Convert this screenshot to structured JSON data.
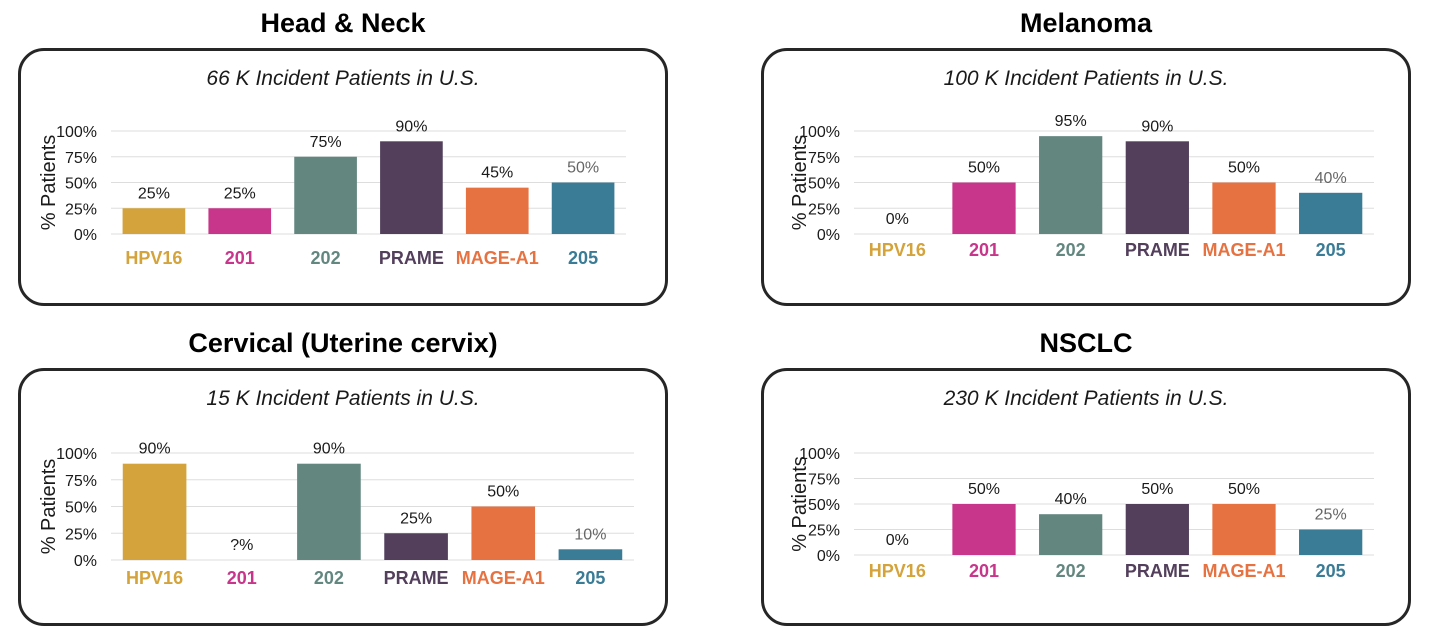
{
  "chart_data": [
    {
      "type": "bar",
      "title": "Head & Neck",
      "subtitle": "66 K Incident Patients in U.S.",
      "ylabel": "% Patients",
      "ylim": [
        0,
        100
      ],
      "yticks": [
        "0%",
        "25%",
        "50%",
        "75%",
        "100%"
      ],
      "grid": true,
      "categories": [
        "HPV16",
        "201",
        "202",
        "PRAME",
        "MAGE-A1",
        "205"
      ],
      "values": [
        25,
        25,
        75,
        90,
        45,
        50
      ],
      "labels": [
        "25%",
        "25%",
        "75%",
        "90%",
        "45%",
        "50%"
      ]
    },
    {
      "type": "bar",
      "title": "Melanoma",
      "subtitle": "100 K Incident Patients in U.S.",
      "ylabel": "% Patients",
      "ylim": [
        0,
        100
      ],
      "yticks": [
        "0%",
        "25%",
        "50%",
        "75%",
        "100%"
      ],
      "grid": true,
      "categories": [
        "HPV16",
        "201",
        "202",
        "PRAME",
        "MAGE-A1",
        "205"
      ],
      "values": [
        0,
        50,
        95,
        90,
        50,
        40
      ],
      "labels": [
        "0%",
        "50%",
        "95%",
        "90%",
        "50%",
        "40%"
      ]
    },
    {
      "type": "bar",
      "title": "Cervical (Uterine cervix)",
      "subtitle": "15 K Incident Patients in U.S.",
      "ylabel": "% Patients",
      "ylim": [
        0,
        100
      ],
      "yticks": [
        "0%",
        "25%",
        "50%",
        "75%",
        "100%"
      ],
      "grid": true,
      "categories": [
        "HPV16",
        "201",
        "202",
        "PRAME",
        "MAGE-A1",
        "205"
      ],
      "values": [
        90,
        0,
        90,
        25,
        50,
        10
      ],
      "labels": [
        "90%",
        "?%",
        "90%",
        "25%",
        "50%",
        "10%"
      ]
    },
    {
      "type": "bar",
      "title": "NSCLC",
      "subtitle": "230 K Incident Patients in U.S.",
      "ylabel": "% Patients",
      "ylim": [
        0,
        100
      ],
      "yticks": [
        "0%",
        "25%",
        "50%",
        "75%",
        "100%"
      ],
      "grid": true,
      "categories": [
        "HPV16",
        "201",
        "202",
        "PRAME",
        "MAGE-A1",
        "205"
      ],
      "values": [
        0,
        50,
        40,
        50,
        50,
        25
      ],
      "labels": [
        "0%",
        "50%",
        "40%",
        "50%",
        "50%",
        "25%"
      ]
    }
  ],
  "colors": {
    "HPV16": "#d4a33b",
    "201": "#c7368a",
    "202": "#63877f",
    "PRAME": "#533f5c",
    "MAGE-A1": "#e77241",
    "205": "#3a7b96",
    "grid": "#dddddd",
    "border": "#262626"
  }
}
